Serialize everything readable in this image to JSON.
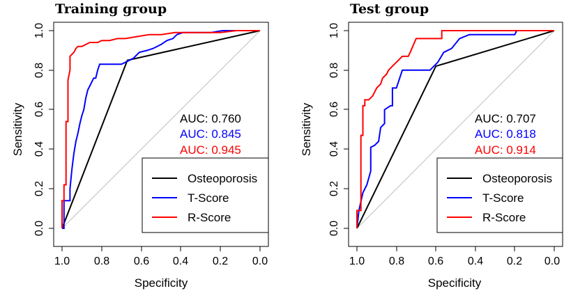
{
  "colors": {
    "Osteoporosis": "#000000",
    "T-Score": "#0000ff",
    "R-Score": "#ff0000",
    "diagonal": "#bebebe"
  },
  "chart_data": [
    {
      "type": "line",
      "title": "Training group",
      "xlabel": "Specificity",
      "ylabel": "Sensitivity",
      "xlim": [
        1.0,
        0.0
      ],
      "ylim": [
        0.0,
        1.0
      ],
      "x_ticks": [
        "1.0",
        "0.8",
        "0.6",
        "0.4",
        "0.2",
        "0.0"
      ],
      "y_ticks": [
        "0.0",
        "0.2",
        "0.4",
        "0.6",
        "0.8",
        "1.0"
      ],
      "reference_line": "diagonal",
      "auc_labels": [
        {
          "series": "Osteoporosis",
          "text": "AUC: 0.760"
        },
        {
          "series": "T-Score",
          "text": "AUC: 0.845"
        },
        {
          "series": "R-Score",
          "text": "AUC: 0.945"
        }
      ],
      "legend": [
        "Osteoporosis",
        "T-Score",
        "R-Score"
      ],
      "legend_position": "bottom-right",
      "series": [
        {
          "name": "Osteoporosis",
          "specificity": [
            1.0,
            0.67,
            0.0
          ],
          "sensitivity": [
            0.0,
            0.85,
            1.0
          ]
        },
        {
          "name": "T-Score",
          "specificity": [
            1.0,
            0.99,
            0.99,
            0.96,
            0.96,
            0.95,
            0.94,
            0.93,
            0.92,
            0.91,
            0.9,
            0.89,
            0.88,
            0.87,
            0.86,
            0.85,
            0.84,
            0.83,
            0.82,
            0.81,
            0.8,
            0.79,
            0.7,
            0.66,
            0.64,
            0.61,
            0.57,
            0.54,
            0.5,
            0.47,
            0.44,
            0.42,
            0.39,
            0.33,
            0.25,
            0.19,
            0.12,
            0.05,
            0.0
          ],
          "sensitivity": [
            0.0,
            0.0,
            0.14,
            0.14,
            0.2,
            0.3,
            0.38,
            0.44,
            0.48,
            0.53,
            0.57,
            0.6,
            0.66,
            0.7,
            0.72,
            0.74,
            0.76,
            0.76,
            0.8,
            0.83,
            0.83,
            0.83,
            0.83,
            0.85,
            0.86,
            0.89,
            0.9,
            0.91,
            0.93,
            0.95,
            0.96,
            0.98,
            0.99,
            0.99,
            0.99,
            1.0,
            1.0,
            1.0,
            1.0
          ]
        },
        {
          "name": "R-Score",
          "specificity": [
            1.0,
            1.0,
            0.99,
            0.99,
            0.98,
            0.98,
            0.97,
            0.97,
            0.96,
            0.96,
            0.95,
            0.94,
            0.93,
            0.92,
            0.9,
            0.88,
            0.86,
            0.84,
            0.82,
            0.8,
            0.76,
            0.72,
            0.68,
            0.62,
            0.56,
            0.5,
            0.43,
            0.35,
            0.28,
            0.2,
            0.12,
            0.05,
            0.0
          ],
          "sensitivity": [
            0.0,
            0.14,
            0.14,
            0.22,
            0.22,
            0.54,
            0.54,
            0.75,
            0.8,
            0.87,
            0.88,
            0.89,
            0.91,
            0.92,
            0.92,
            0.93,
            0.94,
            0.94,
            0.94,
            0.95,
            0.95,
            0.96,
            0.96,
            0.97,
            0.98,
            0.98,
            0.99,
            0.99,
            0.99,
            0.99,
            1.0,
            1.0,
            1.0
          ]
        }
      ]
    },
    {
      "type": "line",
      "title": "Test group",
      "xlabel": "Specificity",
      "ylabel": "Sensitivity",
      "xlim": [
        1.0,
        0.0
      ],
      "ylim": [
        0.0,
        1.0
      ],
      "x_ticks": [
        "1.0",
        "0.8",
        "0.6",
        "0.4",
        "0.2",
        "0.0"
      ],
      "y_ticks": [
        "0.0",
        "0.2",
        "0.4",
        "0.6",
        "0.8",
        "1.0"
      ],
      "reference_line": "diagonal",
      "auc_labels": [
        {
          "series": "Osteoporosis",
          "text": "AUC: 0.707"
        },
        {
          "series": "T-Score",
          "text": "AUC: 0.818"
        },
        {
          "series": "R-Score",
          "text": "AUC: 0.914"
        }
      ],
      "legend": [
        "Osteoporosis",
        "T-Score",
        "R-Score"
      ],
      "legend_position": "bottom-right",
      "series": [
        {
          "name": "Osteoporosis",
          "specificity": [
            1.0,
            0.6,
            0.0
          ],
          "sensitivity": [
            0.0,
            0.82,
            1.0
          ]
        },
        {
          "name": "T-Score",
          "specificity": [
            1.0,
            0.99,
            0.97,
            0.95,
            0.93,
            0.93,
            0.91,
            0.89,
            0.88,
            0.86,
            0.86,
            0.83,
            0.82,
            0.82,
            0.8,
            0.77,
            0.7,
            0.63,
            0.59,
            0.56,
            0.52,
            0.48,
            0.43,
            0.38,
            0.2,
            0.19,
            0.0
          ],
          "sensitivity": [
            0.0,
            0.09,
            0.18,
            0.22,
            0.29,
            0.41,
            0.42,
            0.44,
            0.51,
            0.53,
            0.6,
            0.62,
            0.62,
            0.71,
            0.71,
            0.8,
            0.8,
            0.8,
            0.84,
            0.89,
            0.91,
            0.96,
            0.98,
            0.98,
            0.98,
            1.0,
            1.0
          ]
        },
        {
          "name": "R-Score",
          "specificity": [
            1.0,
            1.0,
            0.98,
            0.98,
            0.97,
            0.97,
            0.96,
            0.96,
            0.94,
            0.92,
            0.9,
            0.88,
            0.87,
            0.85,
            0.84,
            0.82,
            0.8,
            0.77,
            0.74,
            0.73,
            0.7,
            0.6,
            0.57,
            0.57,
            0.0
          ],
          "sensitivity": [
            0.0,
            0.09,
            0.09,
            0.47,
            0.47,
            0.62,
            0.62,
            0.65,
            0.65,
            0.67,
            0.71,
            0.73,
            0.76,
            0.78,
            0.8,
            0.82,
            0.84,
            0.87,
            0.87,
            0.89,
            0.96,
            0.96,
            0.96,
            1.0,
            1.0
          ]
        }
      ]
    }
  ]
}
